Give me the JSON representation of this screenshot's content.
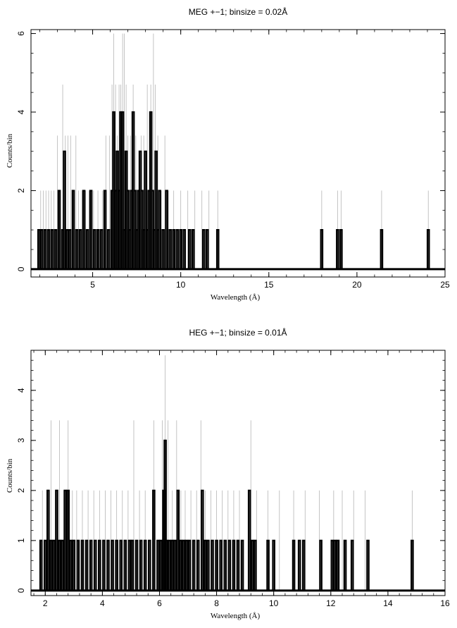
{
  "chart_data": [
    {
      "type": "bar",
      "title": "MEG +−1; binsize = 0.02Å",
      "xlabel": "Wavelength (Å)",
      "ylabel": "Counts/bin",
      "xlim": [
        1.5,
        25
      ],
      "ylim": [
        -0.2,
        6.1
      ],
      "xticks": [
        5,
        10,
        15,
        20,
        25
      ],
      "xtick_labels": [
        "5",
        "10",
        "15",
        "20",
        "25"
      ],
      "yticks": [
        0,
        2,
        4,
        6
      ],
      "ytick_labels": [
        "0",
        "2",
        "4",
        "6"
      ],
      "grid": false,
      "series": [
        {
          "style": "thin grey lines",
          "x": [
            2.05,
            2.2,
            2.35,
            2.5,
            2.65,
            2.8,
            3.0,
            3.1,
            3.3,
            3.45,
            3.6,
            3.75,
            3.9,
            4.05,
            4.2,
            4.4,
            4.6,
            4.8,
            5.05,
            5.3,
            5.55,
            5.75,
            5.95,
            6.1,
            6.2,
            6.3,
            6.4,
            6.5,
            6.6,
            6.7,
            6.8,
            6.9,
            7.0,
            7.15,
            7.3,
            7.45,
            7.6,
            7.75,
            7.9,
            8.1,
            8.3,
            8.45,
            8.55,
            8.7,
            8.9,
            9.1,
            9.3,
            9.6,
            10.0,
            10.4,
            10.8,
            11.2,
            11.6,
            12.1,
            18.0,
            18.9,
            19.1,
            21.4,
            24.05
          ],
          "values": [
            2,
            2,
            2,
            2,
            2,
            2,
            3.4,
            2,
            4.7,
            3.4,
            3.4,
            3.4,
            2,
            3.4,
            2,
            2,
            2,
            2,
            2,
            2,
            2,
            3.4,
            3.4,
            4.7,
            6,
            4.7,
            3.4,
            4.7,
            4.7,
            6,
            6,
            4.7,
            3.4,
            3.4,
            4.7,
            3.4,
            2,
            3.4,
            3.4,
            4.7,
            4.7,
            6,
            4.7,
            3.4,
            2,
            3.4,
            2,
            2,
            2,
            2,
            2,
            2,
            2,
            2,
            2,
            2,
            2,
            2,
            2
          ]
        },
        {
          "style": "thick black histogram",
          "x": [
            1.95,
            2.1,
            2.3,
            2.5,
            2.7,
            2.9,
            3.1,
            3.3,
            3.4,
            3.55,
            3.7,
            3.9,
            4.1,
            4.3,
            4.5,
            4.7,
            4.9,
            5.1,
            5.3,
            5.5,
            5.7,
            5.9,
            6.1,
            6.2,
            6.3,
            6.4,
            6.5,
            6.6,
            6.7,
            6.8,
            6.9,
            7.0,
            7.1,
            7.2,
            7.3,
            7.4,
            7.5,
            7.6,
            7.7,
            7.8,
            7.9,
            8.0,
            8.1,
            8.2,
            8.3,
            8.4,
            8.5,
            8.6,
            8.7,
            8.8,
            9.0,
            9.2,
            9.4,
            9.6,
            9.8,
            10.0,
            10.2,
            10.5,
            10.7,
            11.3,
            11.5,
            12.1,
            18.0,
            18.9,
            19.1,
            21.4,
            24.05
          ],
          "values": [
            1,
            1,
            1,
            1,
            1,
            1,
            2,
            1,
            3,
            1,
            1,
            2,
            1,
            1,
            2,
            1,
            2,
            1,
            1,
            1,
            2,
            1,
            2,
            4,
            2,
            3,
            2,
            4,
            4,
            1,
            3,
            2,
            1,
            2,
            4,
            2,
            1,
            2,
            3,
            2,
            1,
            3,
            1,
            2,
            4,
            2,
            1,
            3,
            1,
            2,
            1,
            2,
            1,
            1,
            1,
            1,
            1,
            1,
            1,
            1,
            1,
            1,
            1,
            1,
            1,
            1,
            1
          ]
        }
      ]
    },
    {
      "type": "bar",
      "title": "HEG +−1; binsize = 0.01Å",
      "xlabel": "Wavelength (Å)",
      "ylabel": "Counts/bin",
      "xlim": [
        1.5,
        16
      ],
      "ylim": [
        -0.1,
        4.8
      ],
      "xticks": [
        2,
        4,
        6,
        8,
        10,
        12,
        14,
        16
      ],
      "xtick_labels": [
        "2",
        "4",
        "6",
        "8",
        "10",
        "12",
        "14",
        "16"
      ],
      "yticks": [
        0,
        1,
        2,
        3,
        4
      ],
      "ytick_labels": [
        "0",
        "1",
        "2",
        "3",
        "4"
      ],
      "grid": false,
      "series": [
        {
          "style": "thin grey lines",
          "x": [
            1.9,
            2.05,
            2.2,
            2.35,
            2.5,
            2.65,
            2.8,
            2.95,
            3.1,
            3.3,
            3.5,
            3.7,
            3.9,
            4.1,
            4.3,
            4.5,
            4.7,
            4.9,
            5.1,
            5.3,
            5.5,
            5.8,
            6.1,
            6.2,
            6.3,
            6.45,
            6.6,
            6.75,
            6.9,
            7.1,
            7.3,
            7.45,
            7.6,
            7.8,
            8.0,
            8.2,
            8.4,
            8.6,
            8.8,
            9.2,
            9.4,
            9.8,
            10.2,
            10.7,
            11.1,
            11.6,
            12.1,
            12.4,
            12.8,
            13.2,
            14.85
          ],
          "values": [
            2,
            2,
            3.4,
            2,
            3.4,
            2,
            3.4,
            2,
            2,
            2,
            2,
            2,
            2,
            2,
            2,
            2,
            2,
            2,
            3.4,
            2,
            2,
            3.4,
            3.4,
            4.7,
            3.4,
            2,
            3.4,
            2,
            2,
            2,
            2,
            3.4,
            2,
            2,
            2,
            2,
            2,
            2,
            2,
            3.4,
            2,
            2,
            2,
            2,
            2,
            2,
            2,
            2,
            2,
            2,
            2
          ]
        },
        {
          "style": "thick black histogram",
          "x": [
            1.85,
            2.0,
            2.1,
            2.2,
            2.3,
            2.4,
            2.5,
            2.6,
            2.7,
            2.8,
            2.9,
            3.0,
            3.15,
            3.3,
            3.45,
            3.6,
            3.75,
            3.9,
            4.05,
            4.2,
            4.35,
            4.5,
            4.65,
            4.8,
            4.95,
            5.05,
            5.2,
            5.35,
            5.5,
            5.65,
            5.8,
            5.95,
            6.05,
            6.15,
            6.2,
            6.25,
            6.35,
            6.45,
            6.55,
            6.65,
            6.75,
            6.85,
            6.95,
            7.05,
            7.2,
            7.35,
            7.5,
            7.6,
            7.7,
            7.85,
            8.0,
            8.15,
            8.3,
            8.45,
            8.6,
            8.75,
            8.9,
            9.15,
            9.25,
            9.35,
            9.8,
            10.0,
            10.7,
            10.9,
            11.05,
            11.65,
            12.05,
            12.15,
            12.25,
            12.5,
            12.75,
            13.3,
            14.85
          ],
          "values": [
            1,
            1,
            2,
            1,
            1,
            2,
            1,
            1,
            2,
            2,
            1,
            1,
            1,
            1,
            1,
            1,
            1,
            1,
            1,
            1,
            1,
            1,
            1,
            1,
            1,
            1,
            1,
            1,
            1,
            1,
            2,
            1,
            1,
            2,
            3,
            1,
            1,
            1,
            1,
            2,
            1,
            1,
            1,
            1,
            1,
            1,
            2,
            1,
            1,
            1,
            1,
            1,
            1,
            1,
            1,
            1,
            1,
            2,
            1,
            1,
            1,
            1,
            1,
            1,
            1,
            1,
            1,
            1,
            1,
            1,
            1,
            1,
            1
          ]
        }
      ]
    }
  ]
}
